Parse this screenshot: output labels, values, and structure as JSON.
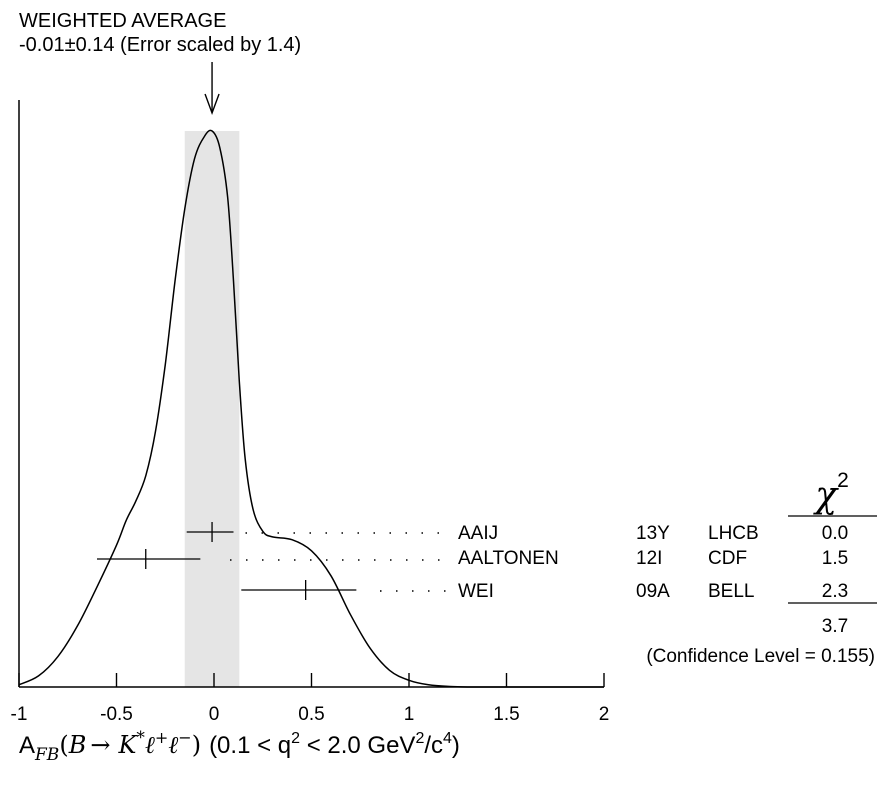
{
  "chart_data": {
    "type": "ideogram",
    "title": "WEIGHTED AVERAGE",
    "subtitle": "-0.01±0.14 (Error scaled by 1.4)",
    "weighted_average": {
      "value": -0.01,
      "error": 0.14,
      "scale_factor": 1.4
    },
    "band": [
      -0.15,
      0.13
    ],
    "xlim": [
      -1,
      2
    ],
    "xticks": [
      -1,
      -0.5,
      0,
      0.5,
      1,
      1.5,
      2
    ],
    "xtick_labels": [
      "-1",
      "-0.5",
      "0",
      "0.5",
      "1",
      "1.5",
      "2"
    ],
    "xlabel": {
      "a": "A",
      "a_sub": "FB",
      "open": "(",
      "b": "B",
      "arrow": "→",
      "k": "K",
      "star": "*",
      "ell1": "ℓ",
      "plus": "+",
      "ell2": "ℓ",
      "minus": "−",
      "close": ")",
      "range_start": "(0.1 < q",
      "q_exp": "2",
      "range_mid": " < 2.0 GeV",
      "gev_exp": "2",
      "range_unit": "/c",
      "c_exp": "4",
      "range_end": ")"
    },
    "chi2_header": {
      "symbol": "χ",
      "exp": "2"
    },
    "measurements": [
      {
        "author": "AAIJ",
        "year": "13Y",
        "experiment": "LHCB",
        "value": -0.01,
        "err_low": -0.14,
        "err_high": 0.1,
        "chi2": "0.0"
      },
      {
        "author": "AALTONEN",
        "year": "12I",
        "experiment": "CDF",
        "value": -0.35,
        "err_low": -0.6,
        "err_high": -0.07,
        "chi2": "1.5"
      },
      {
        "author": "WEI",
        "year": "09A",
        "experiment": "BELL",
        "value": 0.47,
        "err_low": 0.14,
        "err_high": 0.73,
        "chi2": "2.3"
      }
    ],
    "chi2_total": "3.7",
    "confidence_level": "(Confidence Level = 0.155)",
    "curve": [
      [
        -1.0,
        0.004
      ],
      [
        -0.9,
        0.02
      ],
      [
        -0.8,
        0.055
      ],
      [
        -0.7,
        0.11
      ],
      [
        -0.6,
        0.18
      ],
      [
        -0.5,
        0.255
      ],
      [
        -0.45,
        0.3
      ],
      [
        -0.4,
        0.335
      ],
      [
        -0.35,
        0.38
      ],
      [
        -0.3,
        0.46
      ],
      [
        -0.25,
        0.58
      ],
      [
        -0.2,
        0.73
      ],
      [
        -0.15,
        0.86
      ],
      [
        -0.1,
        0.95
      ],
      [
        -0.05,
        0.99
      ],
      [
        -0.01,
        1.0
      ],
      [
        0.03,
        0.97
      ],
      [
        0.07,
        0.88
      ],
      [
        0.1,
        0.73
      ],
      [
        0.13,
        0.55
      ],
      [
        0.16,
        0.41
      ],
      [
        0.2,
        0.32
      ],
      [
        0.25,
        0.28
      ],
      [
        0.3,
        0.27
      ],
      [
        0.4,
        0.265
      ],
      [
        0.5,
        0.245
      ],
      [
        0.6,
        0.2
      ],
      [
        0.7,
        0.13
      ],
      [
        0.8,
        0.07
      ],
      [
        0.9,
        0.03
      ],
      [
        1.0,
        0.012
      ],
      [
        1.1,
        0.004
      ],
      [
        1.2,
        0.001
      ],
      [
        1.3,
        0.0
      ],
      [
        1.6,
        0.0
      ],
      [
        2.0,
        0.0
      ]
    ],
    "grid": false
  }
}
